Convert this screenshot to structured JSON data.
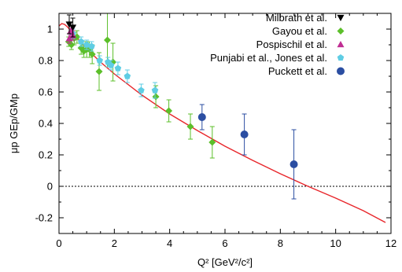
{
  "chart_data": {
    "type": "scatter",
    "title": "",
    "xlabel": "Q² [GeV²/c²]",
    "ylabel": "μp GEp/GMp",
    "xlim": [
      0,
      12
    ],
    "ylim": [
      -0.3,
      1.1
    ],
    "xticks": [
      0,
      2,
      4,
      6,
      8,
      10,
      12
    ],
    "yticks": [
      -0.2,
      0,
      0.2,
      0.4,
      0.6,
      0.8,
      1
    ],
    "grid": false,
    "legend_position": "top-right",
    "reference_line": {
      "y": 0,
      "style": "dotted",
      "color": "#000000"
    },
    "fit_curve": {
      "color": "#e8262b",
      "x": [
        0.0,
        0.1,
        0.2,
        0.3,
        0.4,
        0.5,
        0.7,
        1.0,
        1.5,
        2.0,
        3.0,
        4.0,
        5.0,
        6.0,
        7.0,
        8.0,
        9.0,
        10.0,
        11.0,
        11.8
      ],
      "y": [
        1.02,
        1.035,
        1.03,
        1.015,
        0.995,
        0.975,
        0.935,
        0.875,
        0.79,
        0.715,
        0.58,
        0.46,
        0.355,
        0.255,
        0.165,
        0.08,
        0.0,
        -0.075,
        -0.155,
        -0.23
      ]
    },
    "series": [
      {
        "name": "Milbrath et al.",
        "marker": "triangle-down",
        "color": "#000000",
        "x": [
          0.37,
          0.5
        ],
        "y": [
          1.03,
          1.01
        ],
        "err": [
          0.06,
          0.06
        ]
      },
      {
        "name": "Gayou et al.",
        "marker": "diamond",
        "color": "#5cbf2a",
        "x": [
          0.35,
          0.45,
          0.55,
          0.65,
          0.8,
          0.9,
          1.0,
          1.1,
          1.2,
          1.45,
          1.75,
          1.95,
          3.5,
          3.97,
          4.75,
          5.54
        ],
        "y": [
          0.92,
          0.9,
          0.94,
          0.95,
          0.88,
          0.86,
          0.87,
          0.87,
          0.84,
          0.73,
          0.93,
          0.79,
          0.57,
          0.48,
          0.38,
          0.28
        ],
        "err": [
          0.03,
          0.03,
          0.04,
          0.04,
          0.04,
          0.04,
          0.05,
          0.05,
          0.06,
          0.12,
          0.17,
          0.12,
          0.07,
          0.07,
          0.08,
          0.1
        ]
      },
      {
        "name": "Pospischil et al.",
        "marker": "triangle-up",
        "color": "#c02e93",
        "x": [
          0.37,
          0.43,
          0.5
        ],
        "y": [
          0.94,
          0.99,
          0.96
        ],
        "err": [
          0.03,
          0.03,
          0.03
        ]
      },
      {
        "name": "Punjabi et al., Jones et al.",
        "marker": "pentagon",
        "color": "#5fcde4",
        "x": [
          0.5,
          0.8,
          1.0,
          1.18,
          1.47,
          1.77,
          1.88,
          2.13,
          2.47,
          2.97,
          3.47
        ],
        "y": [
          0.97,
          0.92,
          0.9,
          0.89,
          0.8,
          0.79,
          0.77,
          0.75,
          0.7,
          0.61,
          0.61
        ],
        "err": [
          0.03,
          0.03,
          0.03,
          0.03,
          0.03,
          0.03,
          0.03,
          0.04,
          0.04,
          0.04,
          0.05
        ]
      },
      {
        "name": "Puckett et al.",
        "marker": "circle",
        "color": "#2b4ea2",
        "x": [
          5.17,
          6.7,
          8.49
        ],
        "y": [
          0.44,
          0.33,
          0.14
        ],
        "err": [
          0.08,
          0.13,
          0.22
        ]
      }
    ]
  }
}
